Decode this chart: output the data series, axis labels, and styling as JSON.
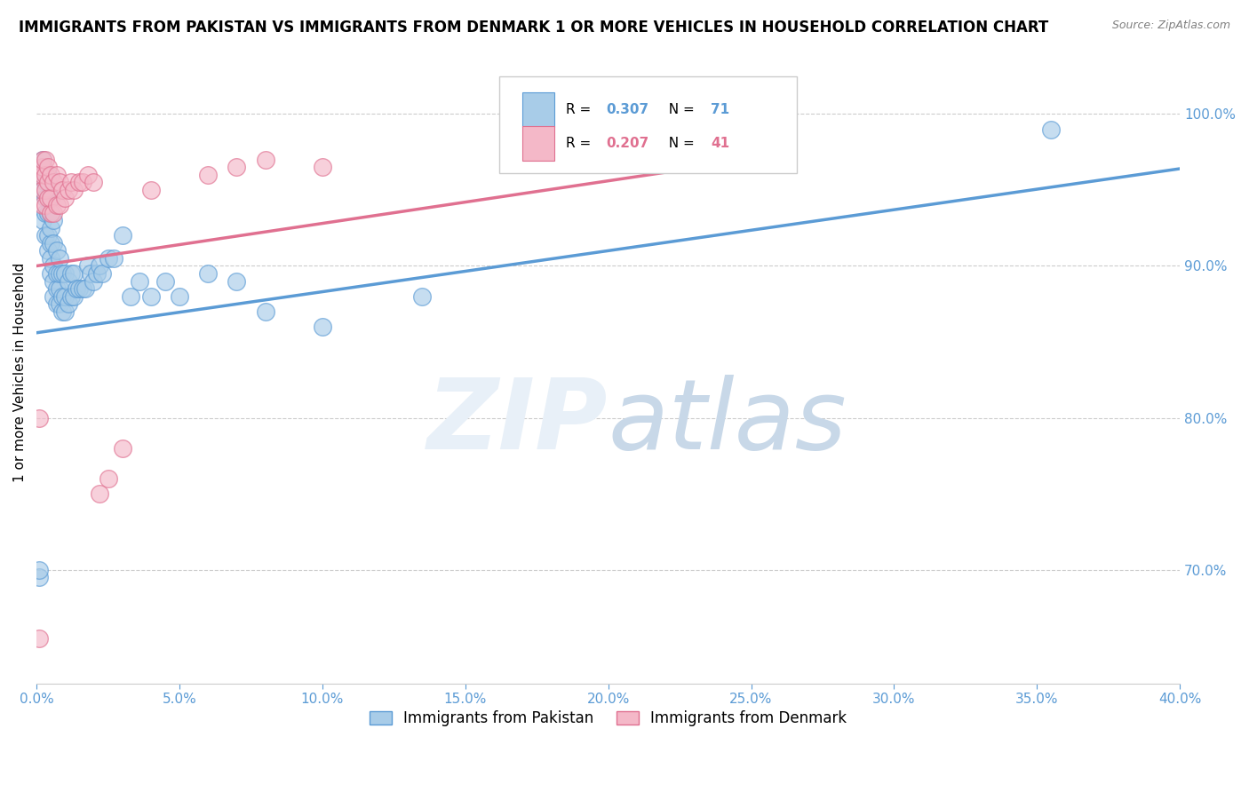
{
  "title": "IMMIGRANTS FROM PAKISTAN VS IMMIGRANTS FROM DENMARK 1 OR MORE VEHICLES IN HOUSEHOLD CORRELATION CHART",
  "source": "Source: ZipAtlas.com",
  "ylabel": "1 or more Vehicles in Household",
  "ytick_labels": [
    "70.0%",
    "80.0%",
    "90.0%",
    "100.0%"
  ],
  "ytick_values": [
    0.7,
    0.8,
    0.9,
    1.0
  ],
  "xlim": [
    0.0,
    0.4
  ],
  "ylim": [
    0.625,
    1.035
  ],
  "pakistan_R": 0.307,
  "pakistan_N": 71,
  "denmark_R": 0.207,
  "denmark_N": 41,
  "pakistan_color": "#a8cce8",
  "pakistan_edge": "#5b9bd5",
  "denmark_color": "#f4b8c8",
  "denmark_edge": "#e07090",
  "legend_pakistan": "Immigrants from Pakistan",
  "legend_denmark": "Immigrants from Denmark",
  "pakistan_x": [
    0.001,
    0.001,
    0.002,
    0.002,
    0.002,
    0.002,
    0.002,
    0.003,
    0.003,
    0.003,
    0.003,
    0.004,
    0.004,
    0.004,
    0.004,
    0.004,
    0.005,
    0.005,
    0.005,
    0.005,
    0.005,
    0.005,
    0.006,
    0.006,
    0.006,
    0.006,
    0.006,
    0.007,
    0.007,
    0.007,
    0.007,
    0.008,
    0.008,
    0.008,
    0.008,
    0.009,
    0.009,
    0.009,
    0.01,
    0.01,
    0.01,
    0.011,
    0.011,
    0.012,
    0.012,
    0.013,
    0.013,
    0.014,
    0.015,
    0.016,
    0.017,
    0.018,
    0.019,
    0.02,
    0.021,
    0.022,
    0.023,
    0.025,
    0.027,
    0.03,
    0.033,
    0.036,
    0.04,
    0.045,
    0.05,
    0.06,
    0.07,
    0.08,
    0.1,
    0.135,
    0.355
  ],
  "pakistan_y": [
    0.695,
    0.7,
    0.93,
    0.95,
    0.96,
    0.965,
    0.97,
    0.92,
    0.935,
    0.945,
    0.955,
    0.91,
    0.92,
    0.935,
    0.945,
    0.96,
    0.895,
    0.905,
    0.915,
    0.925,
    0.935,
    0.945,
    0.88,
    0.89,
    0.9,
    0.915,
    0.93,
    0.875,
    0.885,
    0.895,
    0.91,
    0.875,
    0.885,
    0.895,
    0.905,
    0.87,
    0.88,
    0.895,
    0.87,
    0.88,
    0.895,
    0.875,
    0.89,
    0.88,
    0.895,
    0.88,
    0.895,
    0.885,
    0.885,
    0.885,
    0.885,
    0.9,
    0.895,
    0.89,
    0.895,
    0.9,
    0.895,
    0.905,
    0.905,
    0.92,
    0.88,
    0.89,
    0.88,
    0.89,
    0.88,
    0.895,
    0.89,
    0.87,
    0.86,
    0.88,
    0.99
  ],
  "denmark_x": [
    0.001,
    0.001,
    0.001,
    0.002,
    0.002,
    0.002,
    0.002,
    0.002,
    0.003,
    0.003,
    0.003,
    0.003,
    0.004,
    0.004,
    0.004,
    0.005,
    0.005,
    0.005,
    0.006,
    0.006,
    0.007,
    0.007,
    0.008,
    0.008,
    0.009,
    0.01,
    0.011,
    0.012,
    0.013,
    0.015,
    0.016,
    0.018,
    0.02,
    0.022,
    0.025,
    0.03,
    0.04,
    0.06,
    0.07,
    0.08,
    0.1
  ],
  "denmark_y": [
    0.655,
    0.8,
    0.96,
    0.94,
    0.95,
    0.96,
    0.965,
    0.97,
    0.94,
    0.95,
    0.96,
    0.97,
    0.945,
    0.955,
    0.965,
    0.935,
    0.945,
    0.96,
    0.935,
    0.955,
    0.94,
    0.96,
    0.94,
    0.955,
    0.95,
    0.945,
    0.95,
    0.955,
    0.95,
    0.955,
    0.955,
    0.96,
    0.955,
    0.75,
    0.76,
    0.78,
    0.95,
    0.96,
    0.965,
    0.97,
    0.965
  ],
  "pak_line_x0": 0.0,
  "pak_line_y0": 0.856,
  "pak_line_x1": 0.4,
  "pak_line_y1": 0.964,
  "den_line_x0": 0.0,
  "den_line_y0": 0.9,
  "den_line_x1": 0.25,
  "den_line_y1": 0.97
}
